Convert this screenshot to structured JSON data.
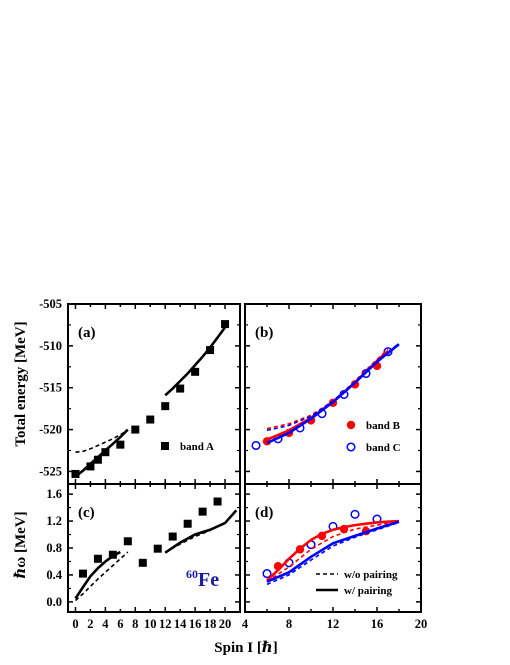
{
  "figure": {
    "nucleus_mass": "60",
    "nucleus_symbol": "Fe"
  },
  "chart_data": [
    {
      "id": "a",
      "type": "scatter",
      "panel_label": "(a)",
      "ylabel": "Total energy [MeV]",
      "xlim": [
        -1,
        22
      ],
      "ylim": [
        -526.5,
        -505
      ],
      "yticks": [
        -525,
        -520,
        -515,
        -510,
        -505
      ],
      "legend": [
        {
          "label": "band A",
          "marker": "filled-square"
        }
      ],
      "series": [
        {
          "name": "band A",
          "marker": "filled-square",
          "color": "#000000",
          "x": [
            0,
            2,
            3,
            4,
            6,
            8,
            10,
            12,
            14,
            16,
            18,
            20
          ],
          "y": [
            -525.3,
            -524.4,
            -523.6,
            -522.7,
            -521.8,
            -520.0,
            -518.8,
            -517.2,
            -515.1,
            -513.1,
            -510.5,
            -507.4
          ]
        },
        {
          "name": "",
          "line": "dashed",
          "color": "#000000",
          "x": [
            0,
            1,
            2,
            3,
            4,
            5,
            6,
            7
          ],
          "y": [
            -522.7,
            -522.6,
            -522.3,
            -521.9,
            -521.5,
            -521.1,
            -520.6,
            -520.1
          ]
        },
        {
          "name": "",
          "line": "solid",
          "color": "#000000",
          "x": [
            0,
            1,
            2,
            3,
            4,
            5,
            6,
            7
          ],
          "y": [
            -525.6,
            -524.9,
            -524.1,
            -523.3,
            -522.5,
            -521.7,
            -520.9,
            -520.0
          ]
        },
        {
          "name": "",
          "line": "solid",
          "color": "#000000",
          "x": [
            12,
            13,
            14,
            15,
            16,
            17,
            18,
            19,
            20
          ],
          "y": [
            -515.9,
            -515.1,
            -514.2,
            -513.3,
            -512.3,
            -511.3,
            -510.2,
            -509.0,
            -507.8
          ]
        }
      ]
    },
    {
      "id": "b",
      "type": "scatter",
      "panel_label": "(b)",
      "xlim": [
        4,
        20
      ],
      "ylim": [
        -526.5,
        -505
      ],
      "yticks": [
        -525,
        -520,
        -515,
        -510,
        -505
      ],
      "legend": [
        {
          "label": "band B",
          "marker": "filled-circle",
          "color": "#ff0000"
        },
        {
          "label": "band C",
          "marker": "open-circle",
          "color": "#0000ff"
        }
      ],
      "series": [
        {
          "name": "band B",
          "marker": "filled-circle",
          "color": "#ff0000",
          "x": [
            6,
            8,
            10,
            12,
            14,
            16
          ],
          "y": [
            -521.4,
            -520.4,
            -518.9,
            -516.8,
            -514.6,
            -512.4
          ]
        },
        {
          "name": "band C",
          "marker": "open-circle",
          "color": "#0000ff",
          "x": [
            5,
            7,
            9,
            11,
            13,
            15,
            17
          ],
          "y": [
            -521.9,
            -521.1,
            -519.8,
            -518.1,
            -515.8,
            -513.3,
            -510.7
          ]
        },
        {
          "name": "",
          "line": "solid",
          "color": "#ff0000",
          "x": [
            6,
            8,
            10,
            12,
            14,
            16,
            17
          ],
          "y": [
            -521.2,
            -520.1,
            -518.6,
            -516.7,
            -514.4,
            -511.8,
            -510.6
          ]
        },
        {
          "name": "",
          "line": "dashed",
          "color": "#ff0000",
          "x": [
            6,
            8,
            10,
            12,
            14,
            16,
            17
          ],
          "y": [
            -519.9,
            -519.3,
            -518.3,
            -516.6,
            -514.2,
            -511.6,
            -510.4
          ]
        },
        {
          "name": "",
          "line": "solid",
          "color": "#0000ff",
          "x": [
            6,
            8,
            10,
            12,
            14,
            16,
            18
          ],
          "y": [
            -521.6,
            -520.4,
            -518.7,
            -516.7,
            -514.4,
            -511.9,
            -509.8
          ]
        },
        {
          "name": "",
          "line": "dashed",
          "color": "#0000ff",
          "x": [
            6,
            8,
            10,
            12,
            14,
            16,
            18
          ],
          "y": [
            -520.1,
            -519.5,
            -518.4,
            -516.6,
            -514.3,
            -511.8,
            -509.7
          ]
        }
      ]
    },
    {
      "id": "c",
      "type": "scatter",
      "panel_label": "(c)",
      "ylabel": "ℏω [MeV]",
      "xlim": [
        -1,
        22
      ],
      "ylim": [
        -0.15,
        1.75
      ],
      "yticks": [
        0.0,
        0.4,
        0.8,
        1.2,
        1.6
      ],
      "xticks": [
        0,
        2,
        4,
        6,
        8,
        10,
        12,
        14,
        16,
        18,
        20
      ],
      "series": [
        {
          "name": "band A",
          "marker": "filled-square",
          "color": "#000000",
          "x": [
            1,
            3,
            5,
            7,
            9,
            11,
            13,
            15,
            17,
            19
          ],
          "y": [
            0.42,
            0.64,
            0.7,
            0.9,
            0.58,
            0.79,
            0.97,
            1.16,
            1.34,
            1.49
          ]
        },
        {
          "name": "",
          "line": "solid",
          "color": "#000000",
          "x": [
            0,
            1,
            2,
            3,
            4,
            5,
            6
          ],
          "y": [
            0.05,
            0.22,
            0.38,
            0.5,
            0.6,
            0.68,
            0.74
          ]
        },
        {
          "name": "",
          "line": "dashed",
          "color": "#000000",
          "x": [
            0,
            1,
            2,
            3,
            4,
            5,
            6,
            7
          ],
          "y": [
            0.02,
            0.12,
            0.23,
            0.34,
            0.44,
            0.54,
            0.64,
            0.74
          ]
        },
        {
          "name": "",
          "line": "solid",
          "color": "#000000",
          "x": [
            12,
            14,
            16,
            18,
            20,
            21.5
          ],
          "y": [
            0.73,
            0.88,
            1.0,
            1.07,
            1.17,
            1.36
          ]
        },
        {
          "name": "",
          "line": "dashed",
          "color": "#000000",
          "x": [
            12,
            14,
            16,
            18
          ],
          "y": [
            0.73,
            0.86,
            0.97,
            1.06
          ]
        }
      ]
    },
    {
      "id": "d",
      "type": "scatter",
      "panel_label": "(d)",
      "xlim": [
        4,
        20
      ],
      "ylim": [
        -0.15,
        1.75
      ],
      "yticks": [
        0.0,
        0.4,
        0.8,
        1.2,
        1.6
      ],
      "xticks": [
        4,
        8,
        12,
        16,
        20
      ],
      "legend": [
        {
          "label": "w/o pairing",
          "line": "dashed"
        },
        {
          "label": "w/  pairing",
          "line": "solid"
        }
      ],
      "series": [
        {
          "name": "band B",
          "marker": "filled-circle",
          "color": "#ff0000",
          "x": [
            7,
            9,
            11,
            13,
            15
          ],
          "y": [
            0.53,
            0.78,
            0.98,
            1.08,
            1.05
          ]
        },
        {
          "name": "band C",
          "marker": "open-circle",
          "color": "#0000ff",
          "x": [
            6,
            8,
            10,
            12,
            14,
            16
          ],
          "y": [
            0.42,
            0.58,
            0.85,
            1.12,
            1.3,
            1.23
          ]
        },
        {
          "name": "",
          "line": "solid",
          "color": "#ff0000",
          "x": [
            6,
            7,
            8,
            9,
            10,
            11,
            12,
            13,
            14,
            15,
            16,
            17,
            18
          ],
          "y": [
            0.32,
            0.47,
            0.64,
            0.79,
            0.92,
            1.01,
            1.07,
            1.11,
            1.14,
            1.16,
            1.18,
            1.19,
            1.2
          ]
        },
        {
          "name": "",
          "line": "dashed",
          "color": "#ff0000",
          "x": [
            6,
            8,
            10,
            12,
            14,
            16,
            18
          ],
          "y": [
            0.3,
            0.52,
            0.78,
            0.97,
            1.08,
            1.14,
            1.19
          ]
        },
        {
          "name": "",
          "line": "solid",
          "color": "#0000ff",
          "x": [
            6,
            8,
            10,
            12,
            14,
            16,
            18
          ],
          "y": [
            0.3,
            0.44,
            0.67,
            0.87,
            0.98,
            1.09,
            1.19
          ]
        },
        {
          "name": "",
          "line": "dashed",
          "color": "#0000ff",
          "x": [
            6,
            8,
            10,
            12,
            14,
            16,
            18
          ],
          "y": [
            0.26,
            0.4,
            0.62,
            0.83,
            0.96,
            1.07,
            1.18
          ]
        }
      ]
    }
  ],
  "x_axis": {
    "label": "Spin I [ℏ]",
    "left_ticks": [
      0,
      4,
      8,
      12,
      16,
      20
    ],
    "right_ticks": [
      4,
      8,
      12,
      16,
      20
    ]
  }
}
